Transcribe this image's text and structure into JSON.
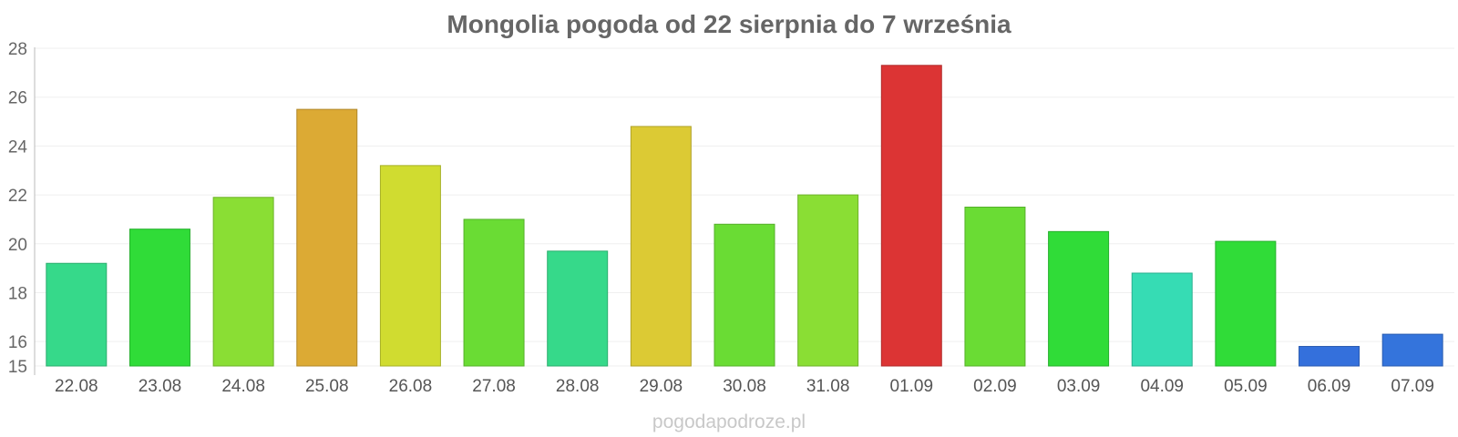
{
  "chart_data": {
    "type": "bar",
    "title": "Mongolia pogoda od 22 sierpnia do 7 września",
    "xlabel": "",
    "ylabel": "",
    "ylim": [
      15,
      28
    ],
    "yticks": [
      15,
      16,
      18,
      20,
      22,
      24,
      26,
      28
    ],
    "grid": true,
    "legend": "none",
    "categories": [
      "22.08",
      "23.08",
      "24.08",
      "25.08",
      "26.08",
      "27.08",
      "28.08",
      "29.08",
      "30.08",
      "31.08",
      "01.09",
      "02.09",
      "03.09",
      "04.09",
      "05.09",
      "06.09",
      "07.09"
    ],
    "values": [
      19.2,
      20.6,
      21.9,
      25.5,
      23.2,
      21.0,
      19.7,
      24.8,
      20.8,
      22.0,
      27.3,
      21.5,
      20.5,
      18.8,
      20.1,
      15.8,
      16.3
    ],
    "colors": [
      "#36d98a",
      "#30dc38",
      "#8ade34",
      "#dcaa34",
      "#d0dc30",
      "#6adc34",
      "#36d98a",
      "#dcca34",
      "#6adc34",
      "#8ade34",
      "#dc3434",
      "#6adc34",
      "#30dc38",
      "#36dcb4",
      "#30dc38",
      "#3470dc",
      "#3474dc"
    ]
  },
  "watermark": "pogodapodroze.pl"
}
